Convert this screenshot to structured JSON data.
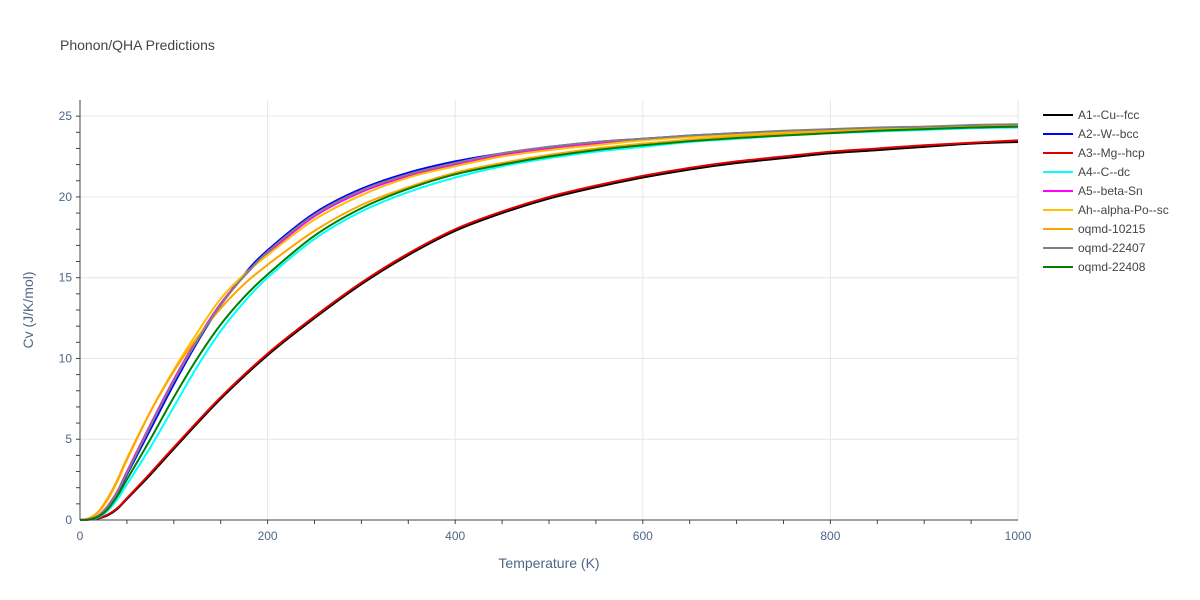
{
  "chart_data": {
    "type": "line",
    "title": "Phonon/QHA Predictions",
    "xlabel": "Temperature (K)",
    "ylabel": "Cv (J/K/mol)",
    "xlim": [
      0,
      1000
    ],
    "ylim": [
      0,
      26
    ],
    "xticks": [
      0,
      200,
      400,
      600,
      800,
      1000
    ],
    "yticks": [
      0,
      5,
      10,
      15,
      20,
      25
    ],
    "grid": true,
    "legend_position": "right",
    "series": [
      {
        "name": "A1--Cu--fcc",
        "color": "#000000",
        "x": [
          0,
          10,
          20,
          30,
          40,
          50,
          75,
          100,
          150,
          200,
          250,
          300,
          350,
          400,
          450,
          500,
          550,
          600,
          650,
          700,
          750,
          800,
          850,
          900,
          950,
          1000
        ],
        "y": [
          0,
          0.02,
          0.1,
          0.3,
          0.7,
          1.3,
          2.8,
          4.4,
          7.5,
          10.2,
          12.5,
          14.6,
          16.4,
          17.9,
          19.0,
          19.9,
          20.6,
          21.2,
          21.7,
          22.1,
          22.4,
          22.7,
          22.9,
          23.1,
          23.3,
          23.4
        ]
      },
      {
        "name": "A2--W--bcc",
        "color": "#0000ff",
        "x": [
          0,
          10,
          20,
          30,
          40,
          50,
          75,
          100,
          125,
          150,
          175,
          200,
          250,
          300,
          350,
          400,
          450,
          500,
          550,
          600,
          650,
          700,
          750,
          800,
          850,
          900,
          950,
          1000
        ],
        "y": [
          0,
          0.05,
          0.25,
          0.8,
          1.7,
          2.8,
          5.6,
          8.4,
          11.0,
          13.3,
          15.2,
          16.7,
          19.0,
          20.5,
          21.5,
          22.2,
          22.7,
          23.1,
          23.4,
          23.6,
          23.8,
          23.95,
          24.05,
          24.15,
          24.25,
          24.3,
          24.35,
          24.4
        ]
      },
      {
        "name": "A3--Mg--hcp",
        "color": "#e00000",
        "x": [
          0,
          10,
          20,
          30,
          40,
          50,
          75,
          100,
          150,
          200,
          250,
          300,
          350,
          400,
          450,
          500,
          550,
          600,
          650,
          700,
          750,
          800,
          850,
          900,
          950,
          1000
        ],
        "y": [
          0,
          0.03,
          0.12,
          0.35,
          0.75,
          1.35,
          2.9,
          4.5,
          7.6,
          10.3,
          12.6,
          14.7,
          16.5,
          18.0,
          19.1,
          20.0,
          20.7,
          21.3,
          21.8,
          22.2,
          22.5,
          22.8,
          23.0,
          23.2,
          23.35,
          23.5
        ]
      },
      {
        "name": "A4--C--dc",
        "color": "#00ffff",
        "x": [
          0,
          10,
          20,
          30,
          40,
          50,
          75,
          100,
          125,
          150,
          175,
          200,
          250,
          300,
          350,
          400,
          450,
          500,
          550,
          600,
          650,
          700,
          750,
          800,
          850,
          900,
          950,
          1000
        ],
        "y": [
          0,
          0.03,
          0.18,
          0.6,
          1.3,
          2.2,
          4.5,
          7.0,
          9.5,
          11.7,
          13.5,
          15.0,
          17.4,
          19.1,
          20.3,
          21.2,
          21.9,
          22.4,
          22.8,
          23.1,
          23.4,
          23.6,
          23.8,
          23.95,
          24.05,
          24.15,
          24.25,
          24.3
        ]
      },
      {
        "name": "A5--beta-Sn",
        "color": "#ff00ff",
        "x": [
          0,
          10,
          20,
          30,
          40,
          50,
          75,
          100,
          125,
          150,
          175,
          200,
          250,
          300,
          350,
          400,
          450,
          500,
          550,
          600,
          650,
          700,
          750,
          800,
          850,
          900,
          950,
          1000
        ],
        "y": [
          0,
          0.06,
          0.3,
          0.9,
          1.8,
          3.0,
          5.9,
          8.7,
          11.2,
          13.4,
          15.1,
          16.5,
          18.8,
          20.3,
          21.3,
          22.0,
          22.6,
          23.0,
          23.3,
          23.55,
          23.75,
          23.9,
          24.0,
          24.1,
          24.2,
          24.25,
          24.3,
          24.35
        ]
      },
      {
        "name": "Ah--alpha-Po--sc",
        "color": "#ffc000",
        "x": [
          0,
          10,
          20,
          30,
          40,
          50,
          75,
          100,
          125,
          150,
          175,
          200,
          250,
          300,
          350,
          400,
          450,
          500,
          550,
          600,
          650,
          700,
          750,
          800,
          850,
          900,
          950,
          1000
        ],
        "y": [
          0,
          0.1,
          0.5,
          1.3,
          2.4,
          3.7,
          6.7,
          9.3,
          11.6,
          13.7,
          15.2,
          16.4,
          18.6,
          20.1,
          21.2,
          21.9,
          22.5,
          22.9,
          23.2,
          23.5,
          23.7,
          23.85,
          24.0,
          24.1,
          24.2,
          24.3,
          24.4,
          24.45
        ]
      },
      {
        "name": "oqmd-10215",
        "color": "#ffa500",
        "x": [
          0,
          10,
          20,
          30,
          40,
          50,
          75,
          100,
          125,
          150,
          175,
          200,
          250,
          300,
          350,
          400,
          450,
          500,
          550,
          600,
          650,
          700,
          750,
          800,
          850,
          900,
          950,
          1000
        ],
        "y": [
          0,
          0.12,
          0.55,
          1.4,
          2.5,
          3.8,
          6.7,
          9.2,
          11.3,
          13.1,
          14.6,
          15.8,
          17.9,
          19.5,
          20.6,
          21.5,
          22.1,
          22.6,
          23.0,
          23.3,
          23.55,
          23.75,
          23.9,
          24.05,
          24.15,
          24.25,
          24.35,
          24.45
        ]
      },
      {
        "name": "oqmd-22407",
        "color": "#808080",
        "x": [
          0,
          10,
          20,
          30,
          40,
          50,
          75,
          100,
          125,
          150,
          175,
          200,
          250,
          300,
          350,
          400,
          450,
          500,
          550,
          600,
          650,
          700,
          750,
          800,
          850,
          900,
          950,
          1000
        ],
        "y": [
          0,
          0.05,
          0.28,
          0.85,
          1.75,
          2.9,
          5.8,
          8.6,
          11.1,
          13.3,
          15.1,
          16.6,
          18.9,
          20.4,
          21.4,
          22.1,
          22.7,
          23.1,
          23.4,
          23.6,
          23.8,
          23.95,
          24.1,
          24.2,
          24.3,
          24.35,
          24.45,
          24.5
        ]
      },
      {
        "name": "oqmd-22408",
        "color": "#008000",
        "x": [
          0,
          10,
          20,
          30,
          40,
          50,
          75,
          100,
          125,
          150,
          175,
          200,
          250,
          300,
          350,
          400,
          450,
          500,
          550,
          600,
          650,
          700,
          750,
          800,
          850,
          900,
          950,
          1000
        ],
        "y": [
          0,
          0.04,
          0.22,
          0.7,
          1.5,
          2.5,
          5.0,
          7.6,
          10.0,
          12.1,
          13.8,
          15.2,
          17.6,
          19.3,
          20.5,
          21.4,
          22.0,
          22.5,
          22.9,
          23.2,
          23.45,
          23.65,
          23.8,
          23.95,
          24.1,
          24.2,
          24.3,
          24.35
        ]
      }
    ]
  }
}
